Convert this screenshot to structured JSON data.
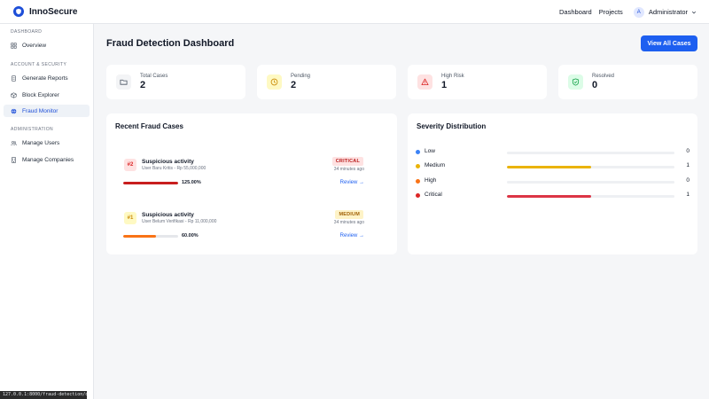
{
  "header": {
    "brand": "InnoSecure",
    "nav": [
      "Dashboard",
      "Projects"
    ],
    "user_initial": "A",
    "user_name": "Administrator"
  },
  "sidebar": {
    "sections": [
      {
        "title": "DASHBOARD",
        "items": [
          {
            "label": "Overview",
            "icon": "grid-icon"
          }
        ]
      },
      {
        "title": "ACCOUNT & SECURITY",
        "items": [
          {
            "label": "Generate Reports",
            "icon": "report-icon"
          },
          {
            "label": "Block Explorer",
            "icon": "cube-icon"
          },
          {
            "label": "Fraud Monitor",
            "icon": "globe-icon",
            "active": true
          }
        ]
      },
      {
        "title": "ADMINISTRATION",
        "items": [
          {
            "label": "Manage Users",
            "icon": "users-icon"
          },
          {
            "label": "Manage Companies",
            "icon": "building-icon"
          }
        ]
      }
    ]
  },
  "status_url": "127.0.0.1:8000/fraud-detection/dashboard",
  "main": {
    "title": "Fraud Detection Dashboard",
    "view_all_label": "View All Cases",
    "stats": [
      {
        "label": "Total Cases",
        "value": "2",
        "icon": "folder-icon",
        "color": "#4b5563",
        "bg": "#f3f4f6"
      },
      {
        "label": "Pending",
        "value": "2",
        "icon": "clock-icon",
        "color": "#ca8a04",
        "bg": "#fef9c3"
      },
      {
        "label": "High Risk",
        "value": "1",
        "icon": "warning-icon",
        "color": "#dc2626",
        "bg": "#fee2e2"
      },
      {
        "label": "Resolved",
        "value": "0",
        "icon": "shield-check-icon",
        "color": "#16a34a",
        "bg": "#dcfce7"
      }
    ],
    "recent": {
      "title": "Recent Fraud Cases",
      "review_label": "Review →",
      "cases": [
        {
          "badge": "#2",
          "badge_color": "#dc2626",
          "badge_bg": "#fee2e2",
          "title": "Suspicious activity",
          "subtitle": "User Baru Kritis - Rp 55,000,000",
          "severity": "CRITICAL",
          "sev_color": "#b91c1c",
          "sev_bg": "#fee2e2",
          "time": "34 minutes ago",
          "score": 1.0,
          "score_label": "125.00%",
          "bar_color": "#c81e1e"
        },
        {
          "badge": "#1",
          "badge_color": "#ca8a04",
          "badge_bg": "#fef9c3",
          "title": "Suspicious activity",
          "subtitle": "User Belum Verifikasi - Rp 11,000,000",
          "severity": "MEDIUM",
          "sev_color": "#a16207",
          "sev_bg": "#fef3c7",
          "time": "34 minutes ago",
          "score": 0.6,
          "score_label": "60.00%",
          "bar_color": "#f97316"
        }
      ]
    },
    "severity": {
      "title": "Severity Distribution",
      "max": 1,
      "rows": [
        {
          "name": "Low",
          "count": 0,
          "dot": "#3b82f6",
          "bar": "#3b82f6"
        },
        {
          "name": "Medium",
          "count": 1,
          "dot": "#eab308",
          "bar": "#eab308"
        },
        {
          "name": "High",
          "count": 0,
          "dot": "#f97316",
          "bar": "#f97316"
        },
        {
          "name": "Critical",
          "count": 1,
          "dot": "#dc2626",
          "bar": "#dc3545"
        }
      ]
    }
  }
}
